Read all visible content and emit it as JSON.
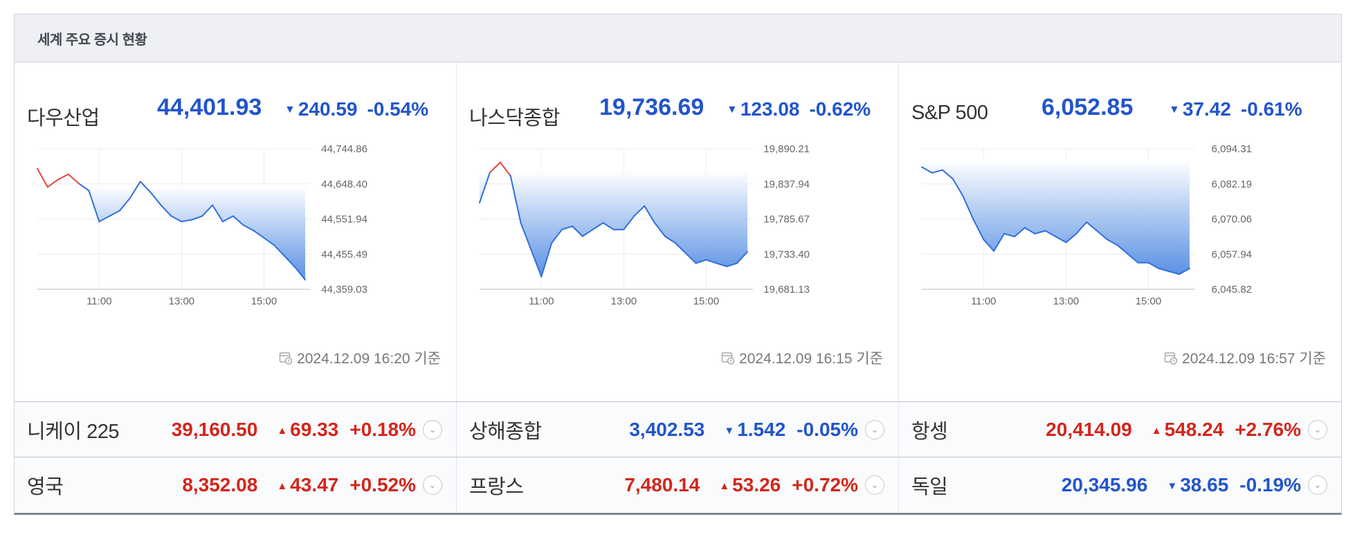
{
  "header": {
    "title": "세계 주요 증시 현황"
  },
  "panels": [
    {
      "name": "다우산업",
      "value": "44,401.93",
      "arrow": "▼",
      "change": "240.59",
      "pct": "-0.54%",
      "timestamp": "2024.12.09 16:20 기준",
      "y_labels": [
        "44,744.86",
        "44,648.40",
        "44,551.94",
        "44,455.49",
        "44,359.03"
      ],
      "x_labels": [
        "11:00",
        "13:00",
        "15:00"
      ]
    },
    {
      "name": "나스닥종합",
      "value": "19,736.69",
      "arrow": "▼",
      "change": "123.08",
      "pct": "-0.62%",
      "timestamp": "2024.12.09 16:15 기준",
      "y_labels": [
        "19,890.21",
        "19,837.94",
        "19,785.67",
        "19,733.40",
        "19,681.13"
      ],
      "x_labels": [
        "11:00",
        "13:00",
        "15:00"
      ]
    },
    {
      "name": "S&P 500",
      "value": "6,052.85",
      "arrow": "▼",
      "change": "37.42",
      "pct": "-0.61%",
      "timestamp": "2024.12.09 16:57 기준",
      "y_labels": [
        "6,094.31",
        "6,082.19",
        "6,070.06",
        "6,057.94",
        "6,045.82"
      ],
      "x_labels": [
        "11:00",
        "13:00",
        "15:00"
      ]
    }
  ],
  "rows": [
    [
      {
        "name": "니케이 225",
        "value": "39,160.50",
        "arrow": "▲",
        "change": "69.33",
        "pct": "+0.18%",
        "dir": "up"
      },
      {
        "name": "상해종합",
        "value": "3,402.53",
        "arrow": "▼",
        "change": "1.542",
        "pct": "-0.05%",
        "dir": "down"
      },
      {
        "name": "항셍",
        "value": "20,414.09",
        "arrow": "▲",
        "change": "548.24",
        "pct": "+2.76%",
        "dir": "up"
      }
    ],
    [
      {
        "name": "영국",
        "value": "8,352.08",
        "arrow": "▲",
        "change": "43.47",
        "pct": "+0.52%",
        "dir": "up"
      },
      {
        "name": "프랑스",
        "value": "7,480.14",
        "arrow": "▲",
        "change": "53.26",
        "pct": "+0.72%",
        "dir": "up"
      },
      {
        "name": "독일",
        "value": "20,345.96",
        "arrow": "▼",
        "change": "38.65",
        "pct": "-0.19%",
        "dir": "down"
      }
    ]
  ],
  "chart_data": [
    {
      "type": "line",
      "title": "다우산업",
      "ylim": [
        44359.03,
        44744.86
      ],
      "x_ticks": [
        "11:00",
        "13:00",
        "15:00"
      ],
      "reference_value": 44642.5,
      "x": [
        "09:30",
        "09:45",
        "10:00",
        "10:15",
        "10:30",
        "10:45",
        "11:00",
        "11:15",
        "11:30",
        "11:45",
        "12:00",
        "12:15",
        "12:30",
        "12:45",
        "13:00",
        "13:15",
        "13:30",
        "13:45",
        "14:00",
        "14:15",
        "14:30",
        "14:45",
        "15:00",
        "15:15",
        "15:30",
        "15:45",
        "16:00"
      ],
      "values": [
        44690,
        44640,
        44660,
        44675,
        44650,
        44630,
        44545,
        44560,
        44575,
        44610,
        44655,
        44625,
        44590,
        44560,
        44545,
        44550,
        44560,
        44590,
        44545,
        44560,
        44535,
        44520,
        44500,
        44480,
        44450,
        44420,
        44385
      ],
      "colors": {
        "above": "#e8453c",
        "below": "#2f6fdb"
      }
    },
    {
      "type": "line",
      "title": "나스닥종합",
      "ylim": [
        19681.13,
        19890.21
      ],
      "x_ticks": [
        "11:00",
        "13:00",
        "15:00"
      ],
      "reference_value": 19857.0,
      "x": [
        "09:30",
        "09:45",
        "10:00",
        "10:15",
        "10:30",
        "10:45",
        "11:00",
        "11:15",
        "11:30",
        "11:45",
        "12:00",
        "12:15",
        "12:30",
        "12:45",
        "13:00",
        "13:15",
        "13:30",
        "13:45",
        "14:00",
        "14:15",
        "14:30",
        "14:45",
        "15:00",
        "15:15",
        "15:30",
        "15:45",
        "16:00"
      ],
      "values": [
        19810,
        19855,
        19870,
        19850,
        19780,
        19740,
        19700,
        19750,
        19770,
        19775,
        19760,
        19770,
        19780,
        19770,
        19770,
        19790,
        19805,
        19780,
        19760,
        19750,
        19735,
        19720,
        19725,
        19720,
        19715,
        19720,
        19737
      ],
      "colors": {
        "above": "#e8453c",
        "below": "#2f6fdb"
      }
    },
    {
      "type": "line",
      "title": "S&P 500",
      "ylim": [
        6045.82,
        6094.31
      ],
      "x_ticks": [
        "11:00",
        "13:00",
        "15:00"
      ],
      "reference_value": 6090.27,
      "x": [
        "09:30",
        "09:45",
        "10:00",
        "10:15",
        "10:30",
        "10:45",
        "11:00",
        "11:15",
        "11:30",
        "11:45",
        "12:00",
        "12:15",
        "12:30",
        "12:45",
        "13:00",
        "13:15",
        "13:30",
        "13:45",
        "14:00",
        "14:15",
        "14:30",
        "14:45",
        "15:00",
        "15:15",
        "15:30",
        "15:45",
        "16:00"
      ],
      "values": [
        6088,
        6086,
        6087,
        6084,
        6078,
        6070,
        6063,
        6059,
        6065,
        6064,
        6067,
        6065,
        6066,
        6064,
        6062,
        6065,
        6069,
        6066,
        6063,
        6061,
        6058,
        6055,
        6055,
        6053,
        6052,
        6051,
        6053
      ],
      "colors": {
        "above": "#e8453c",
        "below": "#2f6fdb"
      }
    }
  ]
}
